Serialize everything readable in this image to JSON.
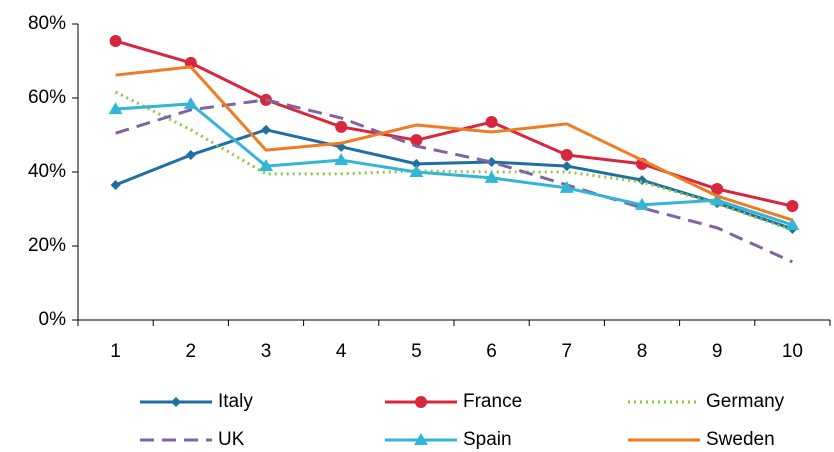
{
  "chart_data": {
    "type": "line",
    "categories": [
      "1",
      "2",
      "3",
      "4",
      "5",
      "6",
      "7",
      "8",
      "9",
      "10"
    ],
    "series": [
      {
        "name": "Italy",
        "color": "#1f6fa5",
        "marker": "diamond",
        "dash": "solid",
        "values": [
          36.5,
          44.6,
          51.4,
          46.8,
          42.2,
          42.7,
          41.6,
          37.8,
          31.6,
          24.6
        ]
      },
      {
        "name": "France",
        "color": "#d7263d",
        "marker": "circle",
        "dash": "solid",
        "values": [
          75.4,
          69.5,
          59.5,
          52.2,
          48.6,
          53.5,
          44.6,
          42.2,
          35.4,
          30.8
        ]
      },
      {
        "name": "Germany",
        "color": "#8dc63f",
        "marker": "none",
        "dash": "dotted",
        "values": [
          61.6,
          51.4,
          39.5,
          39.5,
          40.3,
          40,
          40,
          37.3,
          31.4,
          24.3
        ]
      },
      {
        "name": "UK",
        "color": "#8064a2",
        "marker": "none",
        "dash": "dashed",
        "values": [
          50.5,
          56.8,
          59.5,
          54.6,
          47,
          42.7,
          36.5,
          30.3,
          24.9,
          15.7
        ]
      },
      {
        "name": "Spain",
        "color": "#33b5d6",
        "marker": "triangle",
        "dash": "solid",
        "values": [
          57,
          58.4,
          41.6,
          43.2,
          40,
          38.4,
          35.7,
          31.1,
          32.4,
          25.7
        ]
      },
      {
        "name": "Sweden",
        "color": "#ef7c22",
        "marker": "none",
        "dash": "solid",
        "values": [
          66.2,
          68.4,
          45.9,
          47.8,
          52.7,
          50.8,
          53,
          43.2,
          33.5,
          27
        ]
      }
    ],
    "ylim": [
      0,
      80
    ],
    "yticks": [
      {
        "value": 0,
        "label": "0%"
      },
      {
        "value": 20,
        "label": "20%"
      },
      {
        "value": 40,
        "label": "40%"
      },
      {
        "value": 60,
        "label": "60%"
      },
      {
        "value": 80,
        "label": "80%"
      }
    ],
    "grid": false,
    "legend": "bottom"
  }
}
